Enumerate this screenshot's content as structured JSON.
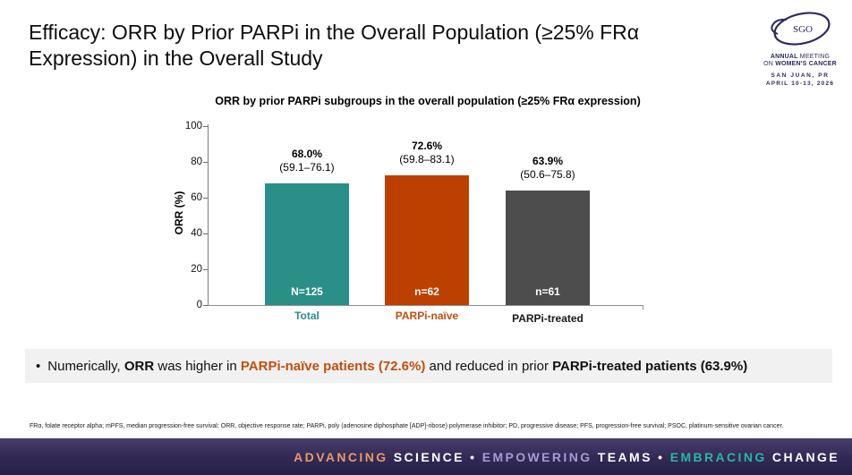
{
  "slide": {
    "title": "Efficacy: ORR by Prior PARPi in the Overall Population (≥25% FRα Expression) in the Overall Study"
  },
  "logo": {
    "acronym": "SGO",
    "meeting_line1_bold": "ANNUAL",
    "meeting_line1_rest": " MEETING",
    "meeting_line2_pre": "ON ",
    "meeting_line2_bold": "WOMEN'S CANCER",
    "location": "SAN JUAN, PR",
    "dates": "APRIL 10-13, 2026",
    "navy": "#2c2a5c"
  },
  "chart_data": {
    "type": "bar",
    "title": "ORR by prior PARPi subgroups in the overall population (≥25% FRα expression)",
    "xlabel": "",
    "ylabel": "ORR (%)",
    "ylim": [
      0,
      100
    ],
    "yticks": [
      0,
      20,
      40,
      60,
      80,
      100
    ],
    "grid": false,
    "legend": "none",
    "categories": [
      "Total",
      "PARPi-naïve",
      "PARPi-treated"
    ],
    "values": [
      68.0,
      72.6,
      63.9
    ],
    "value_labels": [
      "68.0%",
      "72.6%",
      "63.9%"
    ],
    "ci_labels": [
      "(59.1–76.1)",
      "(59.8–83.1)",
      "(50.6–75.8)"
    ],
    "n_labels": [
      "N=125",
      "n=62",
      "n=61"
    ],
    "bar_colors": [
      "#2a8f86",
      "#bc4100",
      "#4d4d4d"
    ],
    "label_colors": [
      "#2a8f86",
      "#c0500e",
      "#1a1a1a"
    ]
  },
  "bullet": {
    "marker": "•",
    "part1": "Numerically, ",
    "bold1": "ORR",
    "part2": " was higher in ",
    "highlight_orange": "PARPi-naïve patients (72.6%)",
    "part3": " and reduced in prior ",
    "bold2": "PARPi-treated patients (63.9%)",
    "orange_color": "#c0500e"
  },
  "footnote": "FRα, folate receptor alpha; mPFS, median progression-free survival; ORR, objective response rate; PARPi, poly (adenosine diphosphate [ADP]-ribose) polymerase inhibitor; PD, progressive disease; PFS, progression-free survival; PSOC, platinum-sensitive ovarian cancer.",
  "banner": {
    "segments": [
      {
        "text": "ADVANCING",
        "color": "#e8996c"
      },
      {
        "text": " SCIENCE ",
        "color": "#ffffff"
      },
      {
        "text": "• ",
        "color": "#ffffff"
      },
      {
        "text": "EMPOWERING",
        "color": "#a79bd4"
      },
      {
        "text": " TEAMS ",
        "color": "#ffffff"
      },
      {
        "text": "• ",
        "color": "#ffffff"
      },
      {
        "text": "EMBRACING",
        "color": "#2ab5a3"
      },
      {
        "text": " CHANGE",
        "color": "#ffffff"
      }
    ]
  }
}
